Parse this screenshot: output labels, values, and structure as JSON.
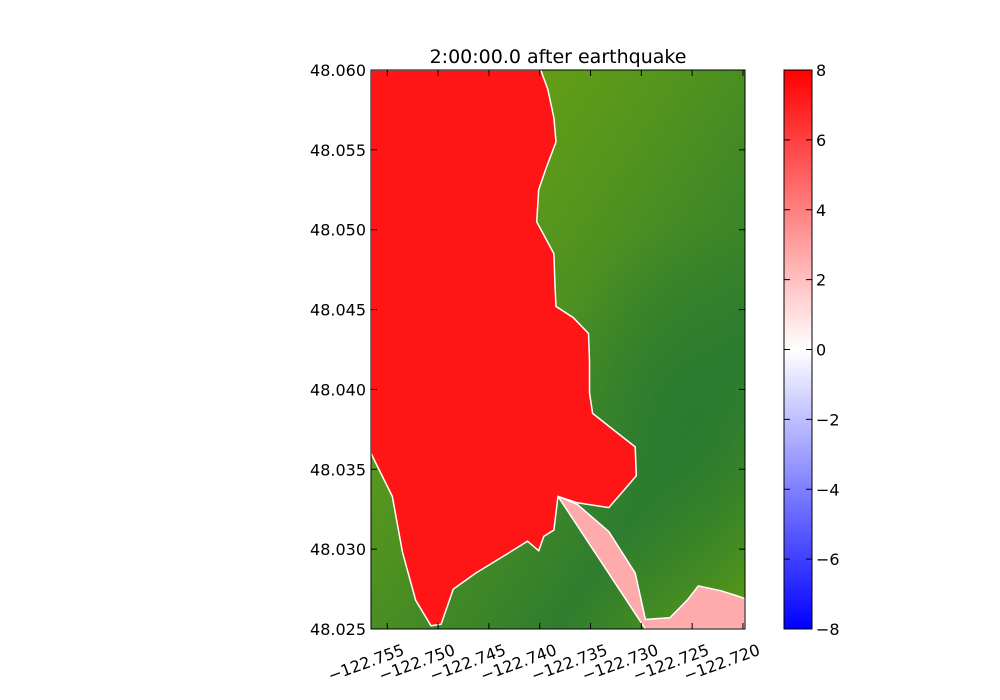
{
  "chart_data": {
    "type": "heatmap",
    "title": "2:00:00.0 after earthquake",
    "xlabel": "",
    "ylabel": "",
    "xlim": [
      -122.7566,
      -122.7198
    ],
    "ylim": [
      48.025,
      48.06
    ],
    "x_ticks": [
      -122.755,
      -122.75,
      -122.745,
      -122.74,
      -122.735,
      -122.73,
      -122.725,
      -122.72
    ],
    "x_tick_labels": [
      "−122.755",
      "−122.750",
      "−122.745",
      "−122.740",
      "−122.735",
      "−122.730",
      "−122.725",
      "−122.720"
    ],
    "y_ticks": [
      48.025,
      48.03,
      48.035,
      48.04,
      48.045,
      48.05,
      48.055,
      48.06
    ],
    "y_tick_labels": [
      "48.025",
      "48.030",
      "48.035",
      "48.040",
      "48.045",
      "48.050",
      "48.055",
      "48.060"
    ],
    "colorbar": {
      "min": -8,
      "max": 8,
      "ticks": [
        -8,
        -6,
        -4,
        -2,
        0,
        2,
        4,
        6,
        8
      ],
      "tick_labels": [
        "−8",
        "−6",
        "−4",
        "−2",
        "0",
        "2",
        "4",
        "6",
        "8"
      ],
      "colors": [
        "#0000ff",
        "#ffffff",
        "#ff0000"
      ]
    },
    "land_colors": [
      "#7aac06",
      "#2f7d2e"
    ],
    "water_color": "#ff1515",
    "shore_wave_color": "#ffaaaa",
    "inundation_boundary": [
      [
        -122.7566,
        48.036
      ],
      [
        -122.7545,
        48.0333
      ],
      [
        -122.7535,
        48.0298
      ],
      [
        -122.7522,
        48.0268
      ],
      [
        -122.7507,
        48.0252
      ],
      [
        -122.7497,
        48.0253
      ],
      [
        -122.7485,
        48.0275
      ],
      [
        -122.7463,
        48.0285
      ],
      [
        -122.7432,
        48.0297
      ],
      [
        -122.7412,
        48.0305
      ],
      [
        -122.7401,
        48.0299
      ],
      [
        -122.7396,
        48.0308
      ],
      [
        -122.7386,
        48.0312
      ],
      [
        -122.7382,
        48.0333
      ],
      [
        -122.7363,
        48.0328
      ],
      [
        -122.7332,
        48.0311
      ],
      [
        -122.7306,
        48.0285
      ],
      [
        -122.7296,
        48.0256
      ],
      [
        -122.7272,
        48.0257
      ],
      [
        -122.7255,
        48.0268
      ],
      [
        -122.7244,
        48.0277
      ],
      [
        -122.7222,
        48.0274
      ],
      [
        -122.7207,
        48.0271
      ],
      [
        -122.7198,
        48.0269
      ]
    ],
    "shoreline": [
      [
        -122.7399,
        48.06
      ],
      [
        -122.7392,
        48.0588
      ],
      [
        -122.7386,
        48.057
      ],
      [
        -122.7384,
        48.0555
      ],
      [
        -122.7394,
        48.0538
      ],
      [
        -122.7401,
        48.0525
      ],
      [
        -122.7403,
        48.0505
      ],
      [
        -122.7386,
        48.0485
      ],
      [
        -122.7385,
        48.0465
      ],
      [
        -122.7384,
        48.0452
      ],
      [
        -122.7367,
        48.0445
      ],
      [
        -122.7352,
        48.0435
      ],
      [
        -122.7351,
        48.0418
      ],
      [
        -122.7351,
        48.0398
      ],
      [
        -122.7348,
        48.0385
      ],
      [
        -122.7328,
        48.0375
      ],
      [
        -122.7306,
        48.0364
      ],
      [
        -122.7305,
        48.0346
      ],
      [
        -122.7317,
        48.0337
      ],
      [
        -122.7332,
        48.0326
      ],
      [
        -122.7363,
        48.0329
      ],
      [
        -122.7382,
        48.0333
      ]
    ]
  }
}
